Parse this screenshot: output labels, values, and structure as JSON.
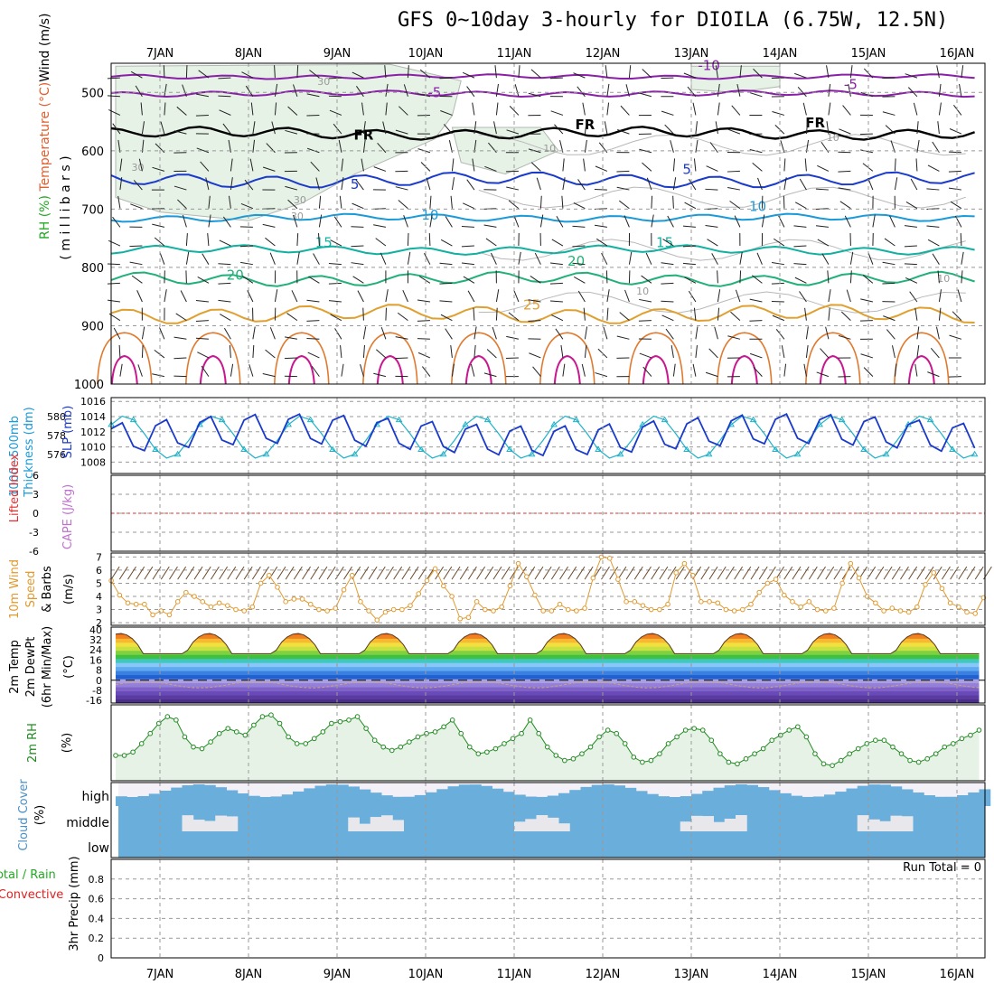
{
  "title": "GFS 0~10day 3-hourly for DIOILA (6.75W, 12.5N)",
  "colors": {
    "wind_barb": "#000000",
    "thickness": "#20b2c8",
    "slp": "#1a3acc",
    "lifted_index": "#e03030",
    "cape": "#c070d0",
    "wind10m": "#e09a30",
    "rh2m": "#228b22",
    "rh_fill": "#e6f2e6",
    "cloud": "#6aaedb",
    "clear": "#f3f0f8",
    "precip_total": "#22aa22",
    "precip_conv": "#dd2222"
  },
  "chart_data": [
    {
      "type": "line",
      "panel": "upper-air",
      "ylabel": [
        "Wind (m/s)",
        "Temperature (°C)",
        "RH (%)",
        "( m i l l i b a r s )"
      ],
      "x": [
        "7JAN",
        "8JAN",
        "9JAN",
        "10JAN",
        "11JAN",
        "12JAN",
        "13JAN",
        "14JAN",
        "15JAN",
        "16JAN"
      ],
      "yticks": [
        500,
        600,
        700,
        800,
        900,
        1000
      ],
      "ylim": [
        1000,
        450
      ],
      "isotherm_labels": [
        {
          "text": "-10",
          "day": 6.2,
          "p": 462
        },
        {
          "text": "-5",
          "day": 3.1,
          "p": 508
        },
        {
          "text": "-5",
          "day": 7.8,
          "p": 494
        },
        {
          "text": "FR",
          "day": 2.3,
          "p": 581
        },
        {
          "text": "FR",
          "day": 4.8,
          "p": 563
        },
        {
          "text": "FR",
          "day": 7.4,
          "p": 560
        },
        {
          "text": "5",
          "day": 2.2,
          "p": 665
        },
        {
          "text": "5",
          "day": 5.95,
          "p": 640
        },
        {
          "text": "10",
          "day": 3.05,
          "p": 718
        },
        {
          "text": "10",
          "day": 6.75,
          "p": 703
        },
        {
          "text": "15",
          "day": 1.85,
          "p": 765
        },
        {
          "text": "15",
          "day": 5.7,
          "p": 765
        },
        {
          "text": "20",
          "day": 0.85,
          "p": 821
        },
        {
          "text": "20",
          "day": 4.7,
          "p": 797
        },
        {
          "text": "25",
          "day": 4.2,
          "p": 872
        }
      ],
      "rh_labels": [
        {
          "text": "30",
          "day": 1.85,
          "p": 487
        },
        {
          "text": "30",
          "day": -0.25,
          "p": 634
        },
        {
          "text": "30",
          "day": 1.58,
          "p": 690
        },
        {
          "text": "30",
          "day": 1.55,
          "p": 718
        },
        {
          "text": "10",
          "day": 4.4,
          "p": 602
        },
        {
          "text": "10",
          "day": 7.6,
          "p": 583
        },
        {
          "text": "10",
          "day": 5.45,
          "p": 847
        },
        {
          "text": "10",
          "day": 8.85,
          "p": 825
        }
      ],
      "isotherms": [
        {
          "name": "-10",
          "color": "#8a1fa8",
          "base": 473,
          "amp": 3
        },
        {
          "name": "-5",
          "color": "#8a1fa8",
          "base": 502,
          "amp": 4
        },
        {
          "name": "FR",
          "color": "#000000",
          "base": 570,
          "amp": 8
        },
        {
          "name": "5",
          "color": "#1a3acc",
          "base": 650,
          "amp": 10
        },
        {
          "name": "10",
          "color": "#1a9ad8",
          "base": 715,
          "amp": 5
        },
        {
          "name": "15",
          "color": "#12b0a0",
          "base": 770,
          "amp": 6
        },
        {
          "name": "20",
          "color": "#20b078",
          "base": 820,
          "amp": 9
        },
        {
          "name": "25",
          "color": "#e0a030",
          "base": 880,
          "amp": 12
        }
      ]
    },
    {
      "type": "line",
      "panel": "thickness-slp",
      "ylabel_left": [
        "1000~500mb",
        "Thickness (dm)"
      ],
      "ylabel_right": "SLP (mb)",
      "yticks_left": [
        576,
        578,
        580
      ],
      "yticks_right": [
        1008,
        1010,
        1012,
        1014,
        1016
      ],
      "ylim_right": [
        1006.5,
        1016.5
      ],
      "series": [
        {
          "name": "thickness",
          "amplitude_mb": 2.8,
          "mean_mb": 1011.3
        },
        {
          "name": "slp",
          "amplitude_mb": 2.3,
          "mean_mb": 1011.6
        }
      ]
    },
    {
      "type": "line",
      "panel": "lifted-cape",
      "ylabel": [
        "Lifted Index",
        "CAPE (J/kg)"
      ],
      "yticks": [
        6,
        3,
        0,
        -3,
        -6
      ],
      "ylim": [
        6,
        -6
      ],
      "zero_line": 0
    },
    {
      "type": "line",
      "panel": "wind10m",
      "ylabel": [
        "10m Wind",
        "Speed",
        "& Barbs",
        "(m/s)"
      ],
      "yticks": [
        2,
        3,
        4,
        5,
        6,
        7
      ],
      "ylim": [
        1.8,
        7.3
      ],
      "speed": [
        5.2,
        4.1,
        3.5,
        3.4,
        3.4,
        2.6,
        2.9,
        2.6,
        3.6,
        4.3,
        4.0,
        3.6,
        3.2,
        3.5,
        3.3,
        3.0,
        2.9,
        3.2,
        5.0,
        5.6,
        4.7,
        3.6,
        3.8,
        3.8,
        3.4,
        3.0,
        2.9,
        3.1,
        4.5,
        5.6,
        3.6,
        2.9,
        2.2,
        2.8,
        3.0,
        3.0,
        3.3,
        4.2,
        5.2,
        6.1,
        4.8,
        4.0,
        2.3,
        2.4,
        3.6,
        3.0,
        2.9,
        3.2,
        4.8,
        6.5,
        5.5,
        4.1,
        2.9,
        2.9,
        3.4,
        3.0,
        2.9,
        3.1,
        5.4,
        7.0,
        6.9,
        5.3,
        3.6,
        3.6,
        3.3,
        3.0,
        3.0,
        3.4,
        5.8,
        6.5,
        5.6,
        3.6,
        3.6,
        3.5,
        3.0,
        2.9,
        3.0,
        3.4,
        4.3,
        5.0,
        5.3,
        4.1,
        3.6,
        3.2,
        3.6,
        3.0,
        2.9,
        3.1,
        5.0,
        6.5,
        5.4,
        4.0,
        3.5,
        2.9,
        3.1,
        2.9,
        2.8,
        3.2,
        4.9,
        5.8,
        4.6,
        3.5,
        3.2,
        2.8,
        2.7,
        3.9
      ]
    },
    {
      "type": "area",
      "panel": "temp2m",
      "ylabel": [
        "2m Temp",
        "2m DewPt",
        "(6hr Min/Max)",
        "(°C)"
      ],
      "yticks": [
        40,
        32,
        24,
        16,
        8,
        0,
        -8,
        -16
      ],
      "ylim": [
        -18,
        42
      ],
      "temp_range": [
        21,
        37
      ],
      "dewpoint_range": [
        -6,
        -1
      ]
    },
    {
      "type": "line",
      "panel": "rh2m",
      "ylabel": [
        "2m RH",
        "(%)"
      ],
      "values": [
        15,
        15,
        17,
        22,
        28,
        34,
        38,
        36,
        26,
        20,
        19,
        23,
        28,
        31,
        29,
        27,
        33,
        38,
        39,
        34,
        26,
        22,
        22,
        25,
        29,
        34,
        35,
        36,
        38,
        31,
        24,
        20,
        18,
        20,
        23,
        26,
        28,
        29,
        32,
        36,
        28,
        20,
        16,
        17,
        19,
        22,
        25,
        28,
        36,
        28,
        20,
        15,
        12,
        13,
        16,
        20,
        26,
        30,
        28,
        22,
        14,
        11,
        12,
        16,
        22,
        26,
        30,
        31,
        30,
        24,
        16,
        11,
        10,
        13,
        16,
        19,
        24,
        27,
        30,
        32,
        26,
        16,
        10,
        9,
        12,
        16,
        19,
        22,
        24,
        24,
        20,
        16,
        12,
        11,
        13,
        16,
        20,
        22,
        25,
        27,
        30
      ]
    },
    {
      "type": "bar",
      "panel": "cloud-cover",
      "ylabel": [
        "Cloud Cover",
        "(%)"
      ],
      "levels": [
        "high",
        "middle",
        "low"
      ]
    },
    {
      "type": "bar",
      "panel": "precip",
      "ylabel": [
        "Total / Rain",
        "Convective",
        "3hr Precip (mm)"
      ],
      "yticks": [
        0,
        0.2,
        0.4,
        0.6,
        0.8
      ],
      "ylim": [
        0,
        1.0
      ],
      "run_total": "Run Total = 0",
      "values": []
    }
  ]
}
